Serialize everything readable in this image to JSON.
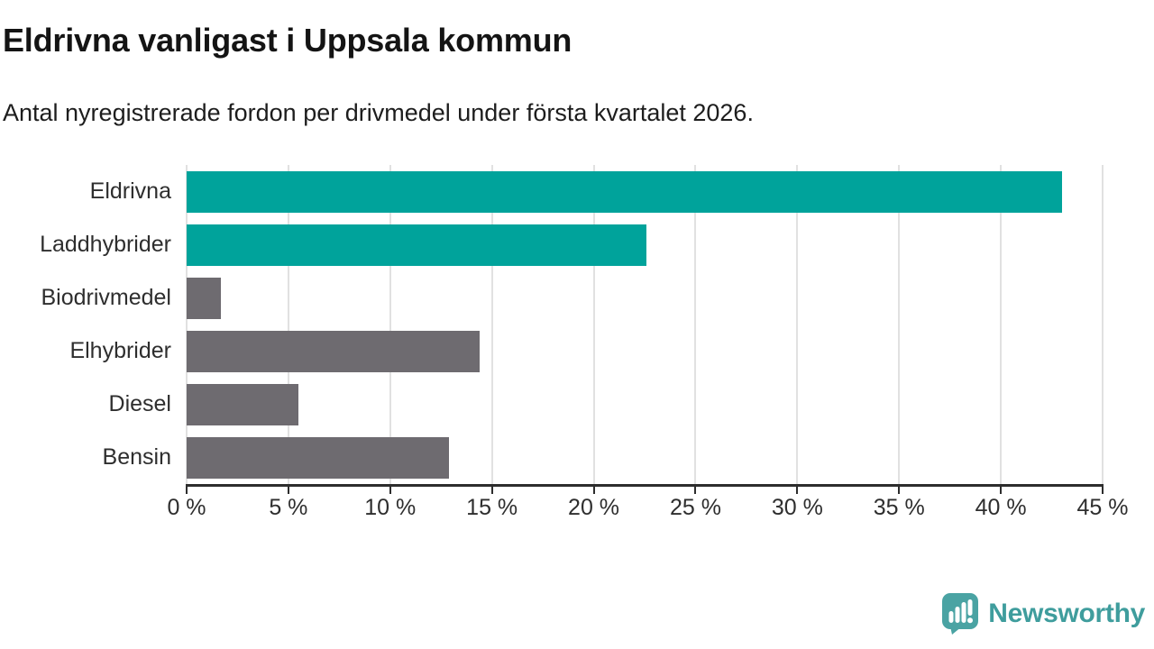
{
  "header": {
    "title": "Eldrivna vanligast i Uppsala kommun",
    "subtitle": "Antal nyregistrerade fordon per drivmedel under första kvartalet 2026."
  },
  "chart_data": {
    "type": "bar",
    "orientation": "horizontal",
    "title": "Eldrivna vanligast i Uppsala kommun",
    "subtitle": "Antal nyregistrerade fordon per drivmedel under första kvartalet 2026.",
    "categories": [
      "Eldrivna",
      "Laddhybrider",
      "Biodrivmedel",
      "Elhybrider",
      "Diesel",
      "Bensin"
    ],
    "values": [
      43,
      22.6,
      1.7,
      14.4,
      5.5,
      12.9
    ],
    "unit": "%",
    "xlabel": "",
    "ylabel": "",
    "xlim": [
      0,
      45
    ],
    "x_ticks": [
      0,
      5,
      10,
      15,
      20,
      25,
      30,
      35,
      40,
      45
    ],
    "x_tick_labels": [
      "0 %",
      "5 %",
      "10 %",
      "15 %",
      "20 %",
      "25 %",
      "30 %",
      "35 %",
      "40 %",
      "45 %"
    ],
    "grid": "vertical-on",
    "legend": "none",
    "bar_colors": [
      "#00a39b",
      "#00a39b",
      "#6e6b70",
      "#6e6b70",
      "#6e6b70",
      "#6e6b70"
    ],
    "highlight_color": "#00a39b",
    "default_color": "#6e6b70",
    "gridline_color": "#e1e1e1",
    "axis_color": "#2d2d2d"
  },
  "footer": {
    "brand": "Newsworthy",
    "brand_color": "#3f9d9d",
    "logo_color": "#4aa3a3",
    "logo_icon": "speech-bubble-bar-chart-icon"
  }
}
